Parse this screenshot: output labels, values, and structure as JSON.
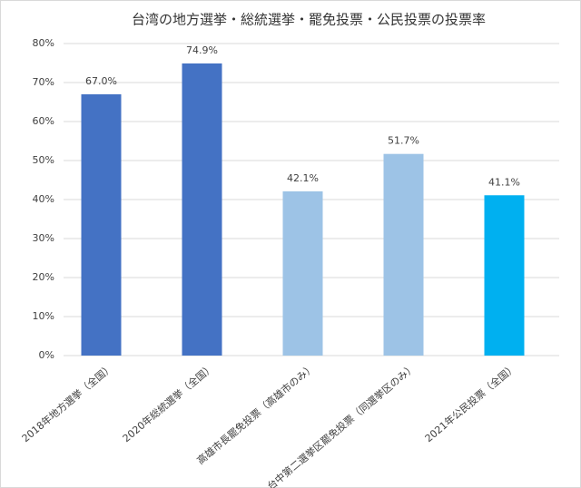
{
  "chart_data": {
    "type": "bar",
    "title": "台湾の地方選挙・総統選挙・罷免投票・公民投票の投票率",
    "categories": [
      "2018年地方選挙（全国）",
      "2020年総統選挙（全国）",
      "高雄市長罷免投票（高雄市のみ）",
      "台中第二選挙区罷免投票（同選挙区のみ）",
      "2021年公民投票（全国）"
    ],
    "values": [
      67.0,
      74.9,
      42.1,
      51.7,
      41.1
    ],
    "value_labels": [
      "67.0%",
      "74.9%",
      "42.1%",
      "51.7%",
      "41.1%"
    ],
    "colors": [
      "#4472c4",
      "#4472c4",
      "#9dc3e6",
      "#9dc3e6",
      "#00b0f0"
    ],
    "ylim": [
      0,
      80
    ],
    "yticks": [
      {
        "value": 0,
        "label": "0%"
      },
      {
        "value": 10,
        "label": "10%"
      },
      {
        "value": 20,
        "label": "20%"
      },
      {
        "value": 30,
        "label": "30%"
      },
      {
        "value": 40,
        "label": "40%"
      },
      {
        "value": 50,
        "label": "50%"
      },
      {
        "value": 60,
        "label": "60%"
      },
      {
        "value": 70,
        "label": "70%"
      },
      {
        "value": 80,
        "label": "80%"
      }
    ],
    "grid": true
  }
}
